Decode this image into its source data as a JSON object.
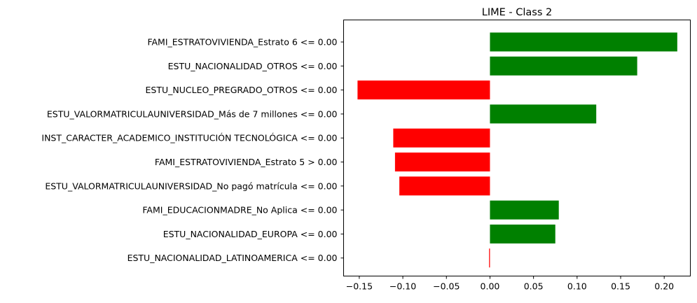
{
  "chart_data": {
    "type": "bar",
    "orientation": "horizontal",
    "title": "LIME - Class 2",
    "xlabel": "",
    "ylabel": "",
    "xlim": [
      -0.168,
      0.23
    ],
    "grid": false,
    "x_ticks": [
      {
        "value": -0.15,
        "label": "−0.15"
      },
      {
        "value": -0.1,
        "label": "−0.10"
      },
      {
        "value": -0.05,
        "label": "−0.05"
      },
      {
        "value": 0.0,
        "label": "0.00"
      },
      {
        "value": 0.05,
        "label": "0.05"
      },
      {
        "value": 0.1,
        "label": "0.10"
      },
      {
        "value": 0.15,
        "label": "0.15"
      },
      {
        "value": 0.2,
        "label": "0.20"
      }
    ],
    "positive_color": "#008000",
    "negative_color": "#ff0000",
    "categories": [
      "FAMI_ESTRATOVIVIENDA_Estrato 6 <= 0.00",
      "ESTU_NACIONALIDAD_OTROS <= 0.00",
      "ESTU_NUCLEO_PREGRADO_OTROS <= 0.00",
      "ESTU_VALORMATRICULAUNIVERSIDAD_Más de 7 millones <= 0.00",
      "INST_CARACTER_ACADEMICO_INSTITUCIÓN TECNOLÓGICA <= 0.00",
      "FAMI_ESTRATOVIVIENDA_Estrato 5 > 0.00",
      "ESTU_VALORMATRICULAUNIVERSIDAD_No pagó matrícula <= 0.00",
      "FAMI_EDUCACIONMADRE_No Aplica <= 0.00",
      "ESTU_NACIONALIDAD_EUROPA <= 0.00",
      "ESTU_NACIONALIDAD_LATINOAMERICA <= 0.00"
    ],
    "values": [
      0.215,
      0.169,
      -0.152,
      0.122,
      -0.111,
      -0.109,
      -0.104,
      0.079,
      0.075,
      -0.001
    ]
  }
}
